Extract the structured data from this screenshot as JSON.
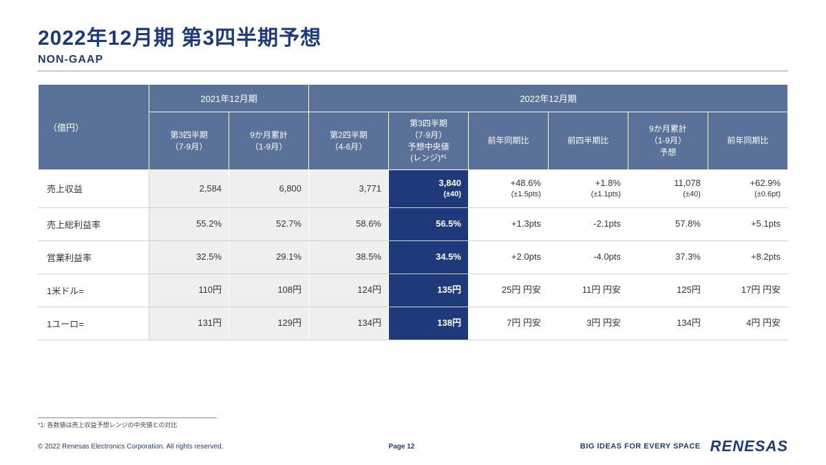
{
  "title": "2022年12月期 第3四半期予想",
  "subtitle": "NON-GAAP",
  "unit_label": "（億円）",
  "colors": {
    "brand": "#1e3a7a",
    "header_bg": "#5a7299",
    "highlight_bg": "#1e3a7a",
    "gray_bg": "#efefef"
  },
  "header_groups": [
    {
      "label": "2021年12月期",
      "span": 2
    },
    {
      "label": "2022年12月期",
      "span": 6
    }
  ],
  "sub_headers": [
    "第3四半期\n（7-9月）",
    "9か月累計\n（1-9月）",
    "第2四半期\n（4-6月）",
    "第3四半期\n（7-9月）\n予想中央値\n(レンジ)*¹",
    "前年同期比",
    "前四半期比",
    "9か月累計\n（1-9月）\n予想",
    "前年同期比"
  ],
  "highlight_col_index": 3,
  "gray_col_indices": [
    0,
    1,
    2
  ],
  "rows": [
    {
      "label": "売上収益",
      "cells": [
        {
          "v": "2,584"
        },
        {
          "v": "6,800"
        },
        {
          "v": "3,771"
        },
        {
          "v": "3,840",
          "sub": "(±40)"
        },
        {
          "v": "+48.6%",
          "sub": "(±1.5pts)"
        },
        {
          "v": "+1.8%",
          "sub": "(±1.1pts)"
        },
        {
          "v": "11,078",
          "sub": "(±40)"
        },
        {
          "v": "+62.9%",
          "sub": "(±0.6pt)"
        }
      ]
    },
    {
      "label": "売上総利益率",
      "cells": [
        {
          "v": "55.2%"
        },
        {
          "v": "52.7%"
        },
        {
          "v": "58.6%"
        },
        {
          "v": "56.5%"
        },
        {
          "v": "+1.3pts"
        },
        {
          "v": "-2.1pts"
        },
        {
          "v": "57.8%"
        },
        {
          "v": "+5.1pts"
        }
      ]
    },
    {
      "label": "営業利益率",
      "cells": [
        {
          "v": "32.5%"
        },
        {
          "v": "29.1%"
        },
        {
          "v": "38.5%"
        },
        {
          "v": "34.5%"
        },
        {
          "v": "+2.0pts"
        },
        {
          "v": "-4.0pts"
        },
        {
          "v": "37.3%"
        },
        {
          "v": "+8.2pts"
        }
      ]
    },
    {
      "label": "1米ドル=",
      "cells": [
        {
          "v": "110円"
        },
        {
          "v": "108円"
        },
        {
          "v": "124円"
        },
        {
          "v": "135円"
        },
        {
          "v": "25円 円安"
        },
        {
          "v": "11円 円安"
        },
        {
          "v": "125円"
        },
        {
          "v": "17円 円安"
        }
      ]
    },
    {
      "label": "1ユーロ=",
      "cells": [
        {
          "v": "131円"
        },
        {
          "v": "129円"
        },
        {
          "v": "134円"
        },
        {
          "v": "138円"
        },
        {
          "v": "7円 円安"
        },
        {
          "v": "3円 円安"
        },
        {
          "v": "134円"
        },
        {
          "v": "4円 円安"
        }
      ]
    }
  ],
  "footnote": "*1: 各数値は売上収益予想レンジの中央値との対比",
  "footer": {
    "copyright": "© 2022 Renesas Electronics Corporation. All rights reserved.",
    "page": "Page 12",
    "tagline": "BIG IDEAS FOR EVERY SPACE",
    "logo": "RENESAS"
  }
}
